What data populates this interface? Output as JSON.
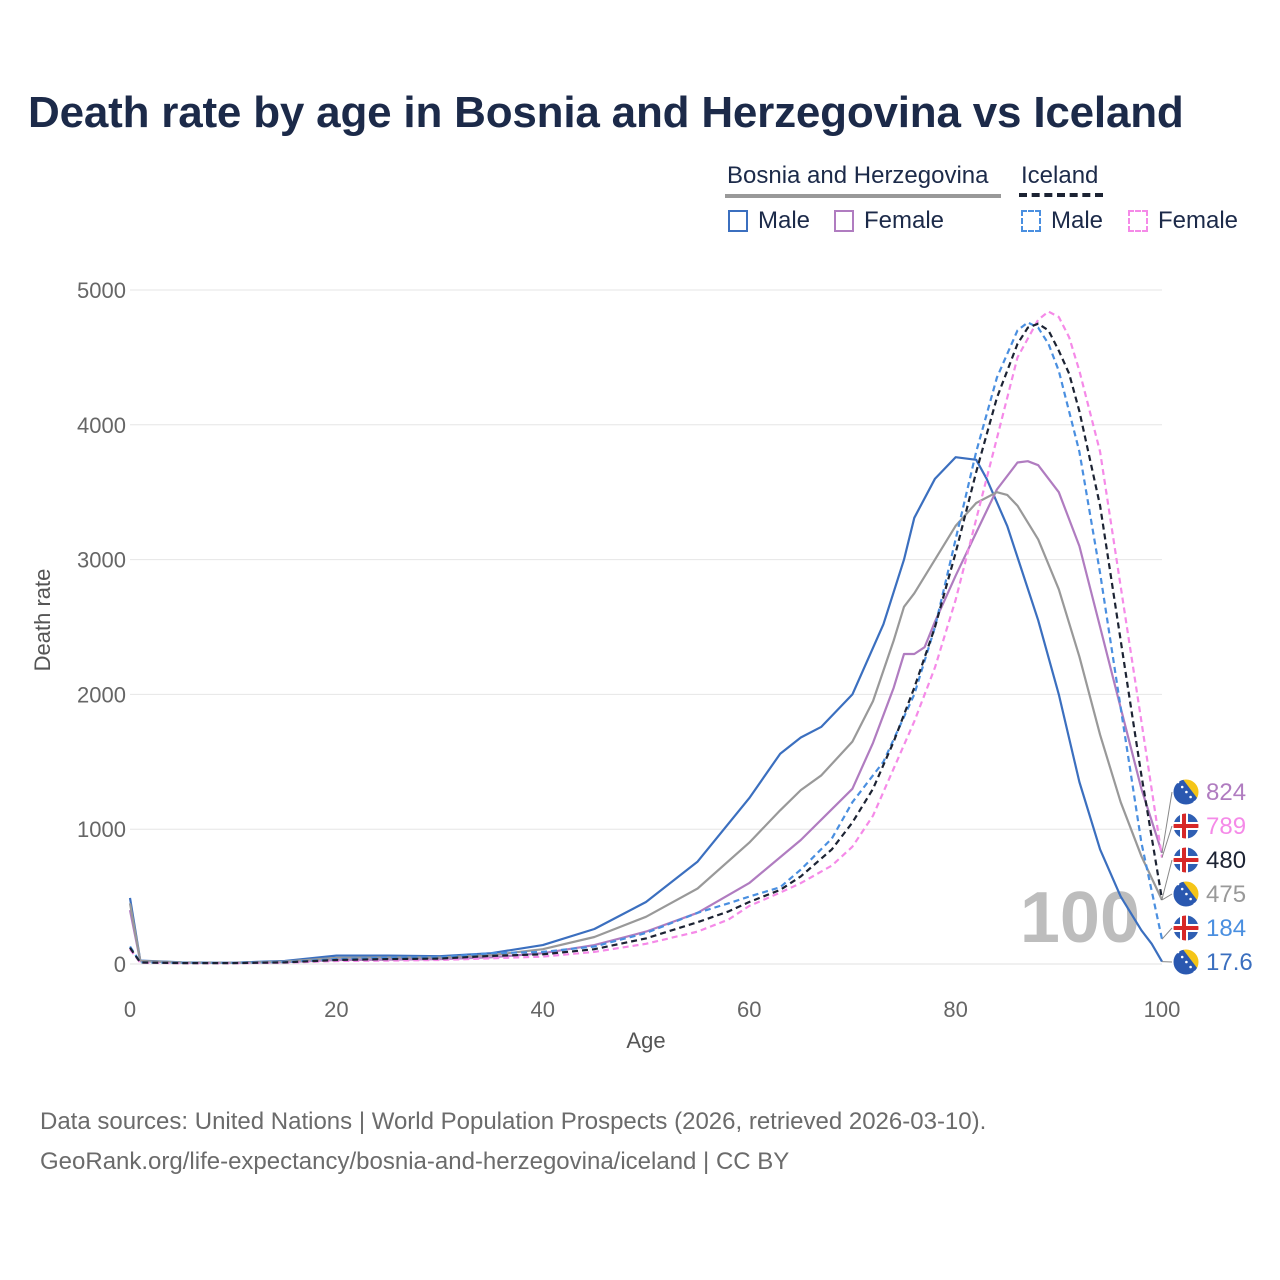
{
  "title": "Death rate by age in Bosnia and Herzegovina vs Iceland",
  "legend": {
    "groups": [
      {
        "name": "Bosnia and Herzegovina",
        "line_color": "#999999",
        "dash": false,
        "items": [
          {
            "label": "Male",
            "color": "#3b6fbf"
          },
          {
            "label": "Female",
            "color": "#b07cc0"
          }
        ]
      },
      {
        "name": "Iceland",
        "line_color": "#1c2333",
        "dash": true,
        "items": [
          {
            "label": "Male",
            "color": "#4a8fe0"
          },
          {
            "label": "Female",
            "color": "#f58ae8"
          }
        ]
      }
    ]
  },
  "footer": {
    "line1": "Data sources: United Nations | World Population Prospects (2026, retrieved 2026-03-10).",
    "line2": "GeoRank.org/life-expectancy/bosnia-and-herzegovina/iceland | CC BY"
  },
  "chart_data": {
    "type": "line",
    "xlabel": "Age",
    "ylabel": "Death rate",
    "xlim": [
      0,
      100
    ],
    "ylim": [
      0,
      5000
    ],
    "x_ticks": [
      0,
      20,
      40,
      60,
      80,
      100
    ],
    "y_ticks": [
      0,
      1000,
      2000,
      3000,
      4000,
      5000
    ],
    "grid": true,
    "watermark": "100",
    "series": [
      {
        "name": "Bosnia and Herzegovina Male",
        "color": "#3b6fbf",
        "dash": false,
        "end_label": "17.6",
        "flag": "bosnia",
        "points": [
          [
            0,
            490
          ],
          [
            1,
            25
          ],
          [
            5,
            12
          ],
          [
            10,
            10
          ],
          [
            15,
            22
          ],
          [
            20,
            62
          ],
          [
            25,
            62
          ],
          [
            30,
            58
          ],
          [
            35,
            80
          ],
          [
            40,
            140
          ],
          [
            45,
            260
          ],
          [
            50,
            460
          ],
          [
            55,
            760
          ],
          [
            60,
            1230
          ],
          [
            63,
            1560
          ],
          [
            65,
            1680
          ],
          [
            67,
            1760
          ],
          [
            70,
            2000
          ],
          [
            73,
            2520
          ],
          [
            75,
            3000
          ],
          [
            76,
            3310
          ],
          [
            78,
            3600
          ],
          [
            80,
            3760
          ],
          [
            82,
            3740
          ],
          [
            83,
            3600
          ],
          [
            85,
            3250
          ],
          [
            88,
            2550
          ],
          [
            90,
            2000
          ],
          [
            92,
            1350
          ],
          [
            94,
            850
          ],
          [
            96,
            500
          ],
          [
            98,
            250
          ],
          [
            99,
            150
          ],
          [
            100,
            17.6
          ]
        ]
      },
      {
        "name": "Bosnia and Herzegovina Female",
        "color": "#b07cc0",
        "dash": false,
        "end_label": "824",
        "flag": "bosnia",
        "points": [
          [
            0,
            400
          ],
          [
            1,
            20
          ],
          [
            5,
            10
          ],
          [
            10,
            8
          ],
          [
            15,
            14
          ],
          [
            20,
            30
          ],
          [
            25,
            32
          ],
          [
            30,
            36
          ],
          [
            35,
            50
          ],
          [
            40,
            80
          ],
          [
            45,
            140
          ],
          [
            50,
            240
          ],
          [
            55,
            380
          ],
          [
            60,
            600
          ],
          [
            65,
            920
          ],
          [
            70,
            1300
          ],
          [
            72,
            1640
          ],
          [
            74,
            2050
          ],
          [
            75,
            2300
          ],
          [
            76,
            2300
          ],
          [
            77,
            2350
          ],
          [
            78,
            2540
          ],
          [
            80,
            2880
          ],
          [
            82,
            3200
          ],
          [
            84,
            3520
          ],
          [
            86,
            3720
          ],
          [
            87,
            3730
          ],
          [
            88,
            3700
          ],
          [
            90,
            3500
          ],
          [
            92,
            3100
          ],
          [
            94,
            2500
          ],
          [
            96,
            1900
          ],
          [
            98,
            1300
          ],
          [
            100,
            824
          ]
        ]
      },
      {
        "name": "Bosnia and Herzegovina Total",
        "color": "#999999",
        "dash": false,
        "end_label": "475",
        "flag": "bosnia",
        "points": [
          [
            0,
            450
          ],
          [
            1,
            22
          ],
          [
            5,
            11
          ],
          [
            10,
            9
          ],
          [
            15,
            18
          ],
          [
            20,
            46
          ],
          [
            25,
            48
          ],
          [
            30,
            48
          ],
          [
            35,
            66
          ],
          [
            40,
            110
          ],
          [
            45,
            200
          ],
          [
            50,
            350
          ],
          [
            55,
            560
          ],
          [
            60,
            900
          ],
          [
            63,
            1140
          ],
          [
            65,
            1290
          ],
          [
            67,
            1400
          ],
          [
            70,
            1650
          ],
          [
            72,
            1950
          ],
          [
            74,
            2400
          ],
          [
            75,
            2650
          ],
          [
            76,
            2750
          ],
          [
            78,
            3000
          ],
          [
            80,
            3250
          ],
          [
            82,
            3420
          ],
          [
            84,
            3500
          ],
          [
            85,
            3480
          ],
          [
            86,
            3400
          ],
          [
            88,
            3150
          ],
          [
            90,
            2780
          ],
          [
            92,
            2280
          ],
          [
            94,
            1700
          ],
          [
            96,
            1200
          ],
          [
            98,
            800
          ],
          [
            100,
            475
          ]
        ]
      },
      {
        "name": "Iceland Male",
        "color": "#4a8fe0",
        "dash": true,
        "end_label": "184",
        "flag": "iceland",
        "points": [
          [
            0,
            130
          ],
          [
            1,
            12
          ],
          [
            5,
            8
          ],
          [
            10,
            8
          ],
          [
            15,
            14
          ],
          [
            20,
            36
          ],
          [
            25,
            46
          ],
          [
            30,
            50
          ],
          [
            35,
            80
          ],
          [
            40,
            90
          ],
          [
            45,
            130
          ],
          [
            50,
            230
          ],
          [
            55,
            380
          ],
          [
            58,
            450
          ],
          [
            60,
            500
          ],
          [
            63,
            570
          ],
          [
            65,
            700
          ],
          [
            68,
            930
          ],
          [
            70,
            1200
          ],
          [
            73,
            1500
          ],
          [
            76,
            2000
          ],
          [
            78,
            2500
          ],
          [
            80,
            3150
          ],
          [
            82,
            3800
          ],
          [
            84,
            4350
          ],
          [
            86,
            4700
          ],
          [
            87,
            4760
          ],
          [
            88,
            4720
          ],
          [
            89,
            4600
          ],
          [
            90,
            4400
          ],
          [
            92,
            3800
          ],
          [
            94,
            2900
          ],
          [
            96,
            1900
          ],
          [
            98,
            900
          ],
          [
            100,
            184
          ]
        ]
      },
      {
        "name": "Iceland Female",
        "color": "#f58ae8",
        "dash": true,
        "end_label": "789",
        "flag": "iceland",
        "points": [
          [
            0,
            110
          ],
          [
            1,
            10
          ],
          [
            5,
            6
          ],
          [
            10,
            6
          ],
          [
            15,
            10
          ],
          [
            20,
            22
          ],
          [
            25,
            25
          ],
          [
            30,
            30
          ],
          [
            35,
            42
          ],
          [
            40,
            55
          ],
          [
            45,
            90
          ],
          [
            50,
            150
          ],
          [
            55,
            240
          ],
          [
            58,
            330
          ],
          [
            60,
            430
          ],
          [
            63,
            530
          ],
          [
            65,
            600
          ],
          [
            68,
            730
          ],
          [
            70,
            870
          ],
          [
            72,
            1100
          ],
          [
            74,
            1450
          ],
          [
            76,
            1800
          ],
          [
            78,
            2200
          ],
          [
            80,
            2700
          ],
          [
            82,
            3300
          ],
          [
            84,
            3900
          ],
          [
            86,
            4500
          ],
          [
            88,
            4780
          ],
          [
            89,
            4840
          ],
          [
            90,
            4800
          ],
          [
            91,
            4650
          ],
          [
            92,
            4400
          ],
          [
            94,
            3800
          ],
          [
            96,
            2800
          ],
          [
            98,
            1800
          ],
          [
            100,
            789
          ]
        ]
      },
      {
        "name": "Iceland Total",
        "color": "#1c2333",
        "dash": true,
        "end_label": "480",
        "flag": "iceland",
        "points": [
          [
            0,
            120
          ],
          [
            1,
            11
          ],
          [
            5,
            7
          ],
          [
            10,
            7
          ],
          [
            15,
            12
          ],
          [
            20,
            30
          ],
          [
            25,
            36
          ],
          [
            30,
            40
          ],
          [
            35,
            60
          ],
          [
            40,
            72
          ],
          [
            45,
            110
          ],
          [
            50,
            190
          ],
          [
            55,
            310
          ],
          [
            58,
            390
          ],
          [
            60,
            460
          ],
          [
            63,
            550
          ],
          [
            65,
            650
          ],
          [
            68,
            850
          ],
          [
            70,
            1050
          ],
          [
            72,
            1300
          ],
          [
            74,
            1650
          ],
          [
            76,
            2050
          ],
          [
            78,
            2500
          ],
          [
            80,
            3050
          ],
          [
            82,
            3650
          ],
          [
            84,
            4200
          ],
          [
            86,
            4600
          ],
          [
            87,
            4720
          ],
          [
            88,
            4750
          ],
          [
            89,
            4700
          ],
          [
            90,
            4550
          ],
          [
            91,
            4380
          ],
          [
            92,
            4100
          ],
          [
            94,
            3400
          ],
          [
            96,
            2400
          ],
          [
            98,
            1400
          ],
          [
            100,
            480
          ]
        ]
      }
    ]
  }
}
